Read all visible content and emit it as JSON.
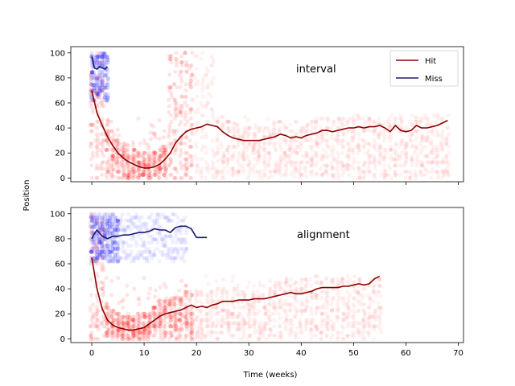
{
  "chart_data": {
    "type": "scatter",
    "shared_x": true,
    "xlabel": "Time (weeks)",
    "ylabel": "Position",
    "xlim": [
      -4,
      71
    ],
    "xticks": [
      0,
      10,
      20,
      30,
      40,
      50,
      60,
      70
    ],
    "ylim": [
      -3,
      105
    ],
    "yticks": [
      0,
      20,
      40,
      60,
      80,
      100
    ],
    "legend": {
      "location": "top-right",
      "entries": [
        {
          "name": "Hit",
          "color": "#8b0000"
        },
        {
          "name": "Miss",
          "color": "#191970"
        }
      ]
    },
    "colors": {
      "hit_points": "#ff0000",
      "miss_points": "#0000ff",
      "hit_line": "#8b0000",
      "miss_line": "#191970"
    },
    "panels": [
      {
        "title": "interval",
        "series": [
          {
            "name": "Hit",
            "kind": "mean-line",
            "x": [
              0,
              1,
              2,
              3,
              4,
              5,
              6,
              7,
              8,
              9,
              10,
              11,
              12,
              13,
              14,
              15,
              16,
              17,
              18,
              19,
              20,
              21,
              22,
              23,
              24,
              25,
              26,
              27,
              28,
              29,
              30,
              31,
              32,
              33,
              34,
              35,
              36,
              37,
              38,
              39,
              40,
              41,
              42,
              43,
              44,
              45,
              46,
              47,
              48,
              49,
              50,
              51,
              52,
              53,
              54,
              55,
              56,
              57,
              58,
              59,
              60,
              61,
              62,
              63,
              64,
              65,
              66,
              67,
              68
            ],
            "y": [
              70,
              52,
              42,
              33,
              26,
              20,
              16,
              13,
              11,
              9,
              8,
              8,
              9,
              11,
              15,
              20,
              28,
              33,
              37,
              39,
              40,
              41,
              43,
              42,
              41,
              37,
              34,
              32,
              31,
              30,
              30,
              30,
              30,
              31,
              32,
              33,
              35,
              34,
              32,
              33,
              32,
              34,
              35,
              36,
              38,
              38,
              37,
              38,
              39,
              40,
              40,
              41,
              40,
              41,
              41,
              42,
              40,
              37,
              42,
              38,
              37,
              38,
              42,
              40,
              40,
              41,
              42,
              44,
              46
            ]
          },
          {
            "name": "Miss",
            "kind": "mean-line",
            "x": [
              0,
              0.5,
              1,
              1.5,
              2,
              2.5,
              3
            ],
            "y": [
              97,
              88,
              87,
              89,
              88,
              87,
              89
            ]
          },
          {
            "name": "Hit",
            "kind": "scatter",
            "description": "observations spread 0-100 early (weeks 0-2), concentrated below ~20 between weeks 3-15, dense 0-100 band between weeks 16-23, then 0-50 band out to week 68"
          },
          {
            "name": "Miss",
            "kind": "scatter",
            "description": "observations between 65 and 100 during weeks 0-3"
          }
        ]
      },
      {
        "title": "alignment",
        "series": [
          {
            "name": "Hit",
            "kind": "mean-line",
            "x": [
              0,
              1,
              2,
              3,
              4,
              5,
              6,
              7,
              8,
              9,
              10,
              11,
              12,
              13,
              14,
              15,
              16,
              17,
              18,
              19,
              20,
              21,
              22,
              23,
              24,
              25,
              26,
              27,
              28,
              29,
              30,
              31,
              32,
              33,
              34,
              35,
              36,
              37,
              38,
              39,
              40,
              41,
              42,
              43,
              44,
              45,
              46,
              47,
              48,
              49,
              50,
              51,
              52,
              53,
              54,
              55
            ],
            "y": [
              65,
              40,
              24,
              15,
              11,
              9,
              8,
              7,
              7,
              8,
              9,
              12,
              15,
              18,
              20,
              21,
              22,
              23,
              25,
              27,
              25,
              26,
              25,
              27,
              28,
              30,
              30,
              30,
              31,
              31,
              31,
              32,
              32,
              32,
              33,
              34,
              35,
              36,
              37,
              36,
              36,
              37,
              38,
              40,
              41,
              41,
              41,
              41,
              42,
              42,
              43,
              44,
              43,
              44,
              48,
              50
            ]
          },
          {
            "name": "Miss",
            "kind": "mean-line",
            "x": [
              0,
              0.5,
              1,
              2,
              3,
              4,
              5,
              6,
              7,
              8,
              9,
              10,
              11,
              12,
              13,
              14,
              15,
              16,
              17,
              18,
              19,
              20,
              21,
              22
            ],
            "y": [
              80,
              84,
              87,
              82,
              80,
              82,
              82,
              83,
              83,
              84,
              85,
              85,
              86,
              88,
              87,
              87,
              85,
              89,
              90,
              90,
              88,
              81,
              81,
              81
            ]
          },
          {
            "name": "Hit",
            "kind": "scatter",
            "description": "observations 0-100 early, concentrated below ~30 between weeks 2-15, then a 0-50 band out to week 55"
          },
          {
            "name": "Miss",
            "kind": "scatter",
            "description": "observations between 60 and 100 during weeks 0-18, densest in weeks 0-5"
          }
        ]
      }
    ]
  }
}
